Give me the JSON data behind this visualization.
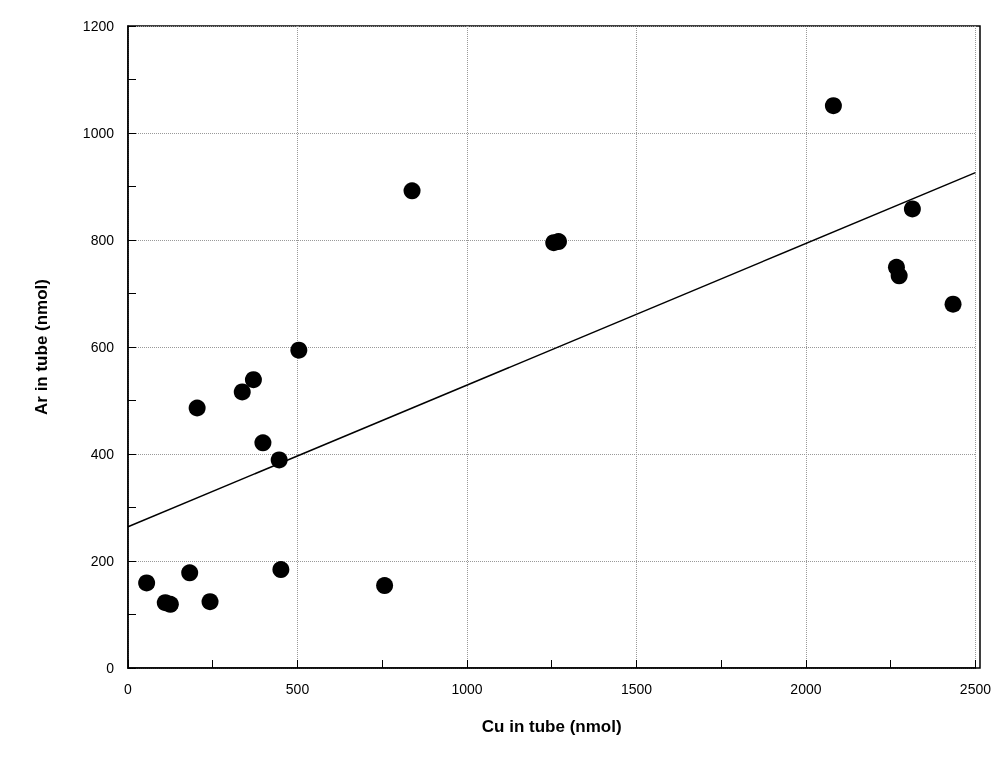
{
  "chart_data": {
    "type": "scatter",
    "xlabel": "Cu in tube (nmol)",
    "ylabel": "Ar in tube (nmol)",
    "xlim": [
      0,
      2500
    ],
    "xticks": [
      0,
      {
        "value": 250,
        "label": null
      },
      500,
      {
        "value": 750,
        "label": null
      },
      1000,
      {
        "value": 1250,
        "label": null
      },
      1500,
      {
        "value": 1750,
        "label": null
      },
      2000,
      {
        "value": 2250,
        "label": null
      },
      2500
    ],
    "ylim": [
      0,
      1200
    ],
    "yticks": [
      0,
      {
        "value": 100,
        "label": null
      },
      200,
      {
        "value": 300,
        "label": null
      },
      400,
      {
        "value": 500,
        "label": null
      },
      600,
      {
        "value": 700,
        "label": null
      },
      800,
      {
        "value": 900,
        "label": null
      },
      1000,
      {
        "value": 1100,
        "label": null
      },
      1200
    ],
    "grid": true,
    "series": [
      {
        "marker": "circle",
        "color": "#000000",
        "x": [
          55,
          110,
          125,
          182,
          242,
          451,
          757,
          204,
          337,
          370,
          504,
          398,
          446,
          838,
          1256,
          1270,
          2081,
          2314,
          2267,
          2275,
          2434
        ],
        "values": [
          159,
          122,
          119,
          178,
          124,
          184,
          154,
          486,
          516,
          539,
          594,
          421,
          389,
          892,
          795,
          797,
          1051,
          858,
          749,
          733,
          680
        ]
      },
      {
        "type": "line",
        "marker": "none",
        "color": "#000000",
        "x": [
          0,
          2500
        ],
        "values": [
          264,
          926
        ]
      }
    ]
  }
}
